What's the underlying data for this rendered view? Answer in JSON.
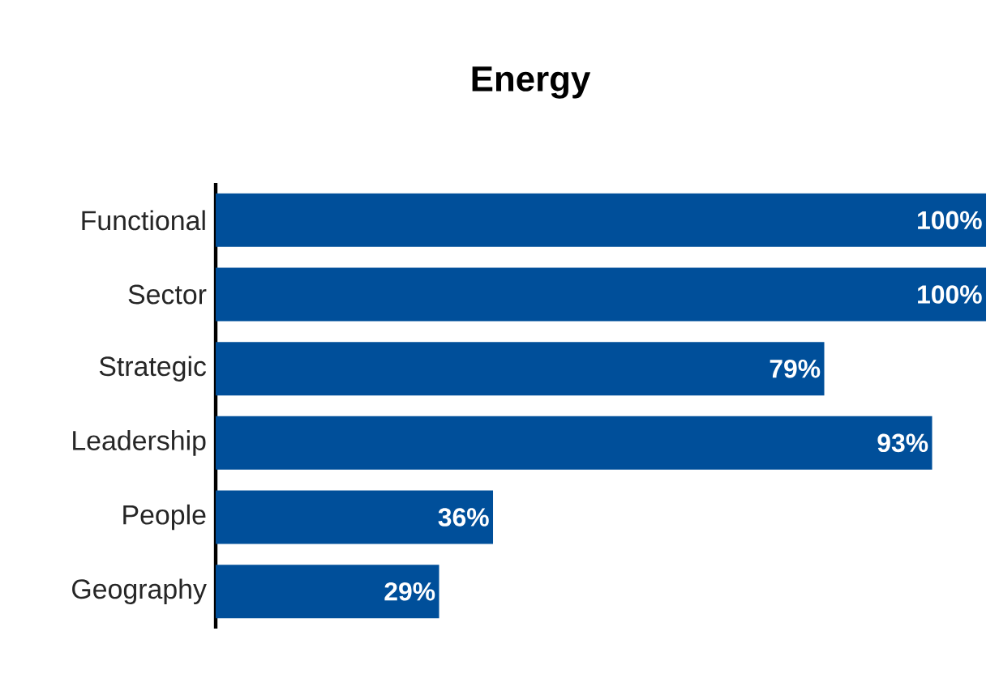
{
  "chart_data": {
    "type": "bar",
    "orientation": "horizontal",
    "title": "Energy",
    "categories": [
      "Functional",
      "Sector",
      "Strategic",
      "Leadership",
      "People",
      "Geography"
    ],
    "values": [
      100,
      100,
      79,
      93,
      36,
      29
    ],
    "value_labels": [
      "100%",
      "100%",
      "79%",
      "93%",
      "36%",
      "29%"
    ],
    "color": "#004f9a",
    "tick_labels": "y"
  }
}
